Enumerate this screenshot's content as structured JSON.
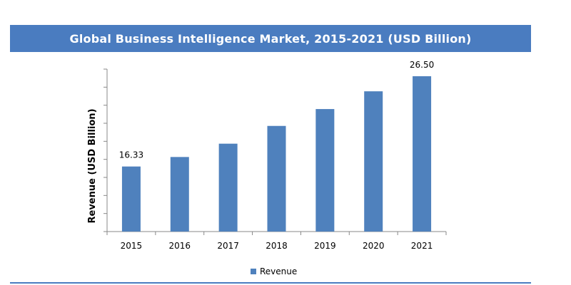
{
  "chart_data": {
    "type": "bar",
    "title": "Global Business Intelligence Market, 2015-2021 (USD Billion)",
    "xlabel": "",
    "ylabel": "Revenue (USD Billion)",
    "categories": [
      "2015",
      "2016",
      "2017",
      "2018",
      "2019",
      "2020",
      "2021"
    ],
    "series": [
      {
        "name": "Revenue",
        "values": [
          16.33,
          17.4,
          18.9,
          20.9,
          22.8,
          24.8,
          26.5
        ],
        "data_labels": [
          "16.33",
          "",
          "",
          "",
          "",
          "",
          "26.50"
        ]
      }
    ],
    "ylim": [
      9,
      27.3
    ],
    "y_tick_count": 9,
    "y_tick_labels_shown": false,
    "grid": false,
    "legend": "bottom",
    "bar_color": "#4f81bd"
  }
}
